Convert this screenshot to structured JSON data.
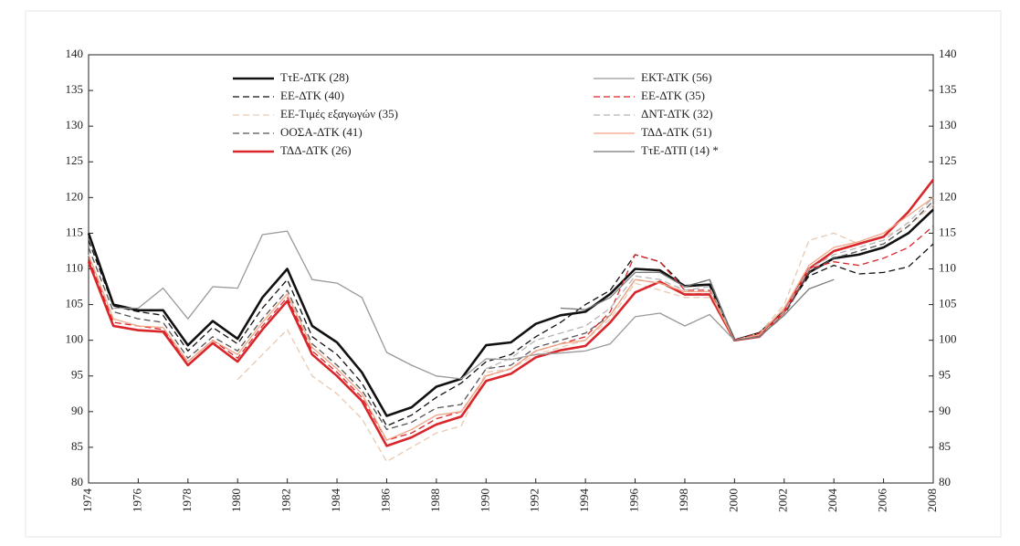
{
  "chart_data": {
    "type": "line",
    "x": [
      1974,
      1975,
      1976,
      1977,
      1978,
      1979,
      1980,
      1981,
      1982,
      1983,
      1984,
      1985,
      1986,
      1987,
      1988,
      1989,
      1990,
      1991,
      1992,
      1993,
      1994,
      1995,
      1996,
      1997,
      1998,
      1999,
      2000,
      2001,
      2002,
      2003,
      2004,
      2005,
      2006,
      2007,
      2008
    ],
    "xlim": [
      1974,
      2008
    ],
    "xticks": [
      1974,
      1976,
      1978,
      1980,
      1982,
      1984,
      1986,
      1988,
      1990,
      1992,
      1994,
      1996,
      1998,
      2000,
      2002,
      2004,
      2006,
      2008
    ],
    "ylim": [
      80,
      140
    ],
    "yticks": [
      80,
      85,
      90,
      95,
      100,
      105,
      110,
      115,
      120,
      125,
      130,
      135,
      140
    ],
    "series": [
      {
        "name": "ΤτΕ-ΔΤΚ (28)",
        "color": "#111111",
        "style": "solid",
        "weight": "bold",
        "values": [
          115,
          105,
          104.2,
          104.2,
          99.3,
          102.7,
          100.2,
          106,
          110,
          102,
          99.7,
          95.5,
          89.4,
          90.6,
          93.5,
          94.6,
          99.3,
          99.7,
          102.3,
          103.5,
          104,
          106.5,
          110,
          109.8,
          107.6,
          107.8,
          100,
          101,
          104,
          109.5,
          111.5,
          112,
          113,
          115,
          118.3
        ]
      },
      {
        "name": "ΕΕ-ΔΤΚ (40)",
        "color": "#111111",
        "style": "dashed",
        "weight": "normal",
        "values": [
          114,
          104.8,
          104,
          103.5,
          98.5,
          101.8,
          99.5,
          104.5,
          108.5,
          100.5,
          98,
          94,
          88,
          89.5,
          92,
          94,
          97,
          98,
          100.5,
          102.5,
          105,
          107,
          112,
          111,
          107.5,
          108.5,
          100,
          101,
          104,
          109,
          110.5,
          109.3,
          109.5,
          110.3,
          113.5
        ]
      },
      {
        "name": "ΕΕ-Τιμές εξαγωγών (35)",
        "color": "#e8c9b0",
        "style": "dashed",
        "weight": "normal",
        "values": [
          null,
          null,
          null,
          null,
          null,
          null,
          94.5,
          98,
          101.5,
          95,
          92.5,
          89,
          83,
          85,
          87,
          88,
          95.5,
          96,
          98,
          99,
          100,
          103,
          108,
          107,
          106,
          106,
          100,
          101,
          105,
          114,
          115,
          113.5,
          114.5,
          116,
          119
        ]
      },
      {
        "name": "ΟΟΣΑ-ΔΤΚ (41)",
        "color": "#555555",
        "style": "dashed",
        "weight": "normal",
        "values": [
          113,
          104,
          103,
          102.5,
          97.5,
          100.5,
          98.5,
          103,
          107,
          99.5,
          96.5,
          93,
          87.5,
          88.5,
          90.5,
          91,
          96,
          96.5,
          99,
          100,
          101,
          103.5,
          108.5,
          108,
          106.5,
          106.5,
          100,
          100.5,
          103.5,
          109.5,
          111.5,
          112.5,
          113.5,
          116,
          119.5
        ]
      },
      {
        "name": "ΤΔΔ-ΔΤΚ (26)",
        "color": "#d9262b",
        "style": "solid",
        "weight": "bold",
        "values": [
          111,
          102,
          101.4,
          101.2,
          96.5,
          99.6,
          97,
          101.5,
          105.5,
          98,
          95,
          91.5,
          85.2,
          86.4,
          88.2,
          89.3,
          94.3,
          95.3,
          97.6,
          98.6,
          99.2,
          102.5,
          106.7,
          108.2,
          106.4,
          106.4,
          100,
          100.5,
          104,
          110,
          112.5,
          113.5,
          114.5,
          118,
          122.5
        ]
      },
      {
        "name": "ΕΚΤ-ΔΤΚ (56)",
        "color": "#999999",
        "style": "solid",
        "weight": "normal",
        "values": [
          null,
          104.5,
          104.5,
          107.3,
          103,
          107.5,
          107.3,
          114.8,
          115.3,
          108.5,
          108,
          106,
          98.3,
          96.5,
          95,
          94.6,
          97.4,
          97.3,
          98,
          98.2,
          98.5,
          99.5,
          103.3,
          103.8,
          102,
          103.6,
          100,
          null,
          null,
          null,
          null,
          null,
          null,
          null,
          null
        ]
      },
      {
        "name": "ΕΕ-ΔΤΚ (35)",
        "color": "#d9262b",
        "style": "dashed",
        "weight": "normal",
        "values": [
          111.5,
          102.5,
          102,
          101.5,
          97,
          100,
          97.5,
          102,
          106,
          98.5,
          95.5,
          92,
          86,
          87,
          89,
          90,
          95,
          96,
          98.5,
          99.5,
          100.5,
          104,
          112,
          111,
          107,
          107,
          100,
          101,
          104,
          110,
          111,
          110.5,
          111.5,
          113,
          116
        ]
      },
      {
        "name": "ΔΝΤ-ΔΤΚ (32)",
        "color": "#b5b5b5",
        "style": "dashed",
        "weight": "normal",
        "values": [
          null,
          null,
          null,
          null,
          null,
          null,
          null,
          null,
          null,
          null,
          null,
          null,
          null,
          null,
          null,
          null,
          96,
          97.5,
          100,
          101,
          102,
          104.5,
          109,
          108.5,
          107,
          107.5,
          100,
          100.5,
          104,
          110,
          112,
          113,
          114,
          116.5,
          120
        ]
      },
      {
        "name": "ΤΔΔ-ΔΤΚ (51)",
        "color": "#f0a585",
        "style": "solid",
        "weight": "normal",
        "values": [
          112,
          103,
          102,
          101.8,
          97,
          100,
          98,
          102.5,
          106.5,
          99,
          96,
          92.5,
          86,
          87.5,
          89.5,
          90,
          95,
          96,
          98.5,
          99.5,
          100,
          103.5,
          108.5,
          108,
          106.8,
          106.8,
          100,
          100.8,
          104.5,
          110.5,
          113,
          113.8,
          115,
          117.5,
          120
        ]
      },
      {
        "name": "ΤτΕ-ΔΤΠ (14) *",
        "color": "#777777",
        "style": "solid",
        "weight": "normal",
        "values": [
          null,
          null,
          null,
          null,
          null,
          null,
          null,
          null,
          null,
          null,
          null,
          null,
          null,
          null,
          null,
          null,
          null,
          null,
          null,
          104.5,
          104.3,
          106,
          109.5,
          109.5,
          107.5,
          108.5,
          100,
          100.5,
          103.5,
          107.2,
          108.5,
          null,
          null,
          null,
          null
        ]
      }
    ]
  }
}
